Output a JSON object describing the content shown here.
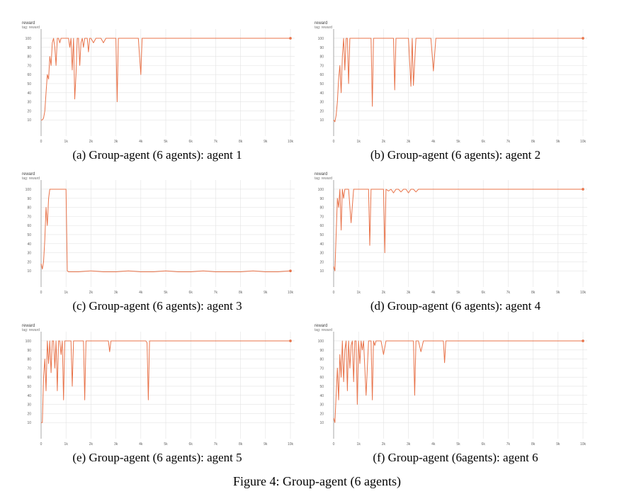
{
  "figure_caption": "Figure 4: Group-agent (6 agents)",
  "colors": {
    "line": "#e8734a",
    "grid": "#e3e3e3",
    "axis": "#999999",
    "text": "#666666"
  },
  "chart_data": [
    {
      "type": "line",
      "caption": "(a) Group-agent (6 agents): agent 1",
      "title": "reward",
      "subtitle": "tag: reward",
      "xlabel": "",
      "ylabel": "",
      "xlim": [
        0,
        10000
      ],
      "ylim": [
        0,
        107
      ],
      "xticks": [
        0,
        1000,
        2000,
        3000,
        4000,
        5000,
        6000,
        7000,
        8000,
        9000,
        10000
      ],
      "xtick_labels": [
        "0",
        "1k",
        "2k",
        "3k",
        "4k",
        "5k",
        "6k",
        "7k",
        "8k",
        "9k",
        "10k"
      ],
      "yticks": [
        10,
        20,
        30,
        40,
        50,
        60,
        70,
        80,
        90,
        100
      ],
      "grid": true,
      "series": [
        {
          "x": [
            0,
            50,
            100,
            150,
            200,
            250,
            300,
            350,
            400,
            450,
            500,
            550,
            600,
            650,
            700,
            750,
            800,
            850,
            900,
            950,
            1000,
            1050,
            1100,
            1150,
            1200,
            1250,
            1300,
            1350,
            1400,
            1450,
            1500,
            1550,
            1600,
            1650,
            1700,
            1750,
            1800,
            1850,
            1900,
            1950,
            2000,
            2100,
            2200,
            2300,
            2400,
            2500,
            2600,
            2700,
            2800,
            2900,
            3000,
            3050,
            3100,
            3200,
            3300,
            3400,
            3500,
            3600,
            3700,
            3800,
            3900,
            3950,
            4000,
            4050,
            4100,
            10000
          ],
          "values": [
            10,
            10,
            12,
            20,
            40,
            60,
            55,
            80,
            70,
            95,
            100,
            90,
            70,
            100,
            100,
            95,
            100,
            100,
            100,
            100,
            100,
            100,
            100,
            90,
            100,
            65,
            100,
            33,
            60,
            100,
            100,
            70,
            95,
            100,
            90,
            100,
            100,
            100,
            85,
            100,
            100,
            95,
            100,
            100,
            100,
            95,
            100,
            100,
            100,
            100,
            100,
            30,
            100,
            100,
            100,
            100,
            100,
            100,
            100,
            100,
            100,
            80,
            60,
            100,
            100,
            100
          ]
        }
      ]
    },
    {
      "type": "line",
      "caption": "(b) Group-agent (6 agents): agent 2",
      "title": "reward",
      "subtitle": "tag: reward",
      "xlabel": "",
      "ylabel": "",
      "xlim": [
        0,
        10000
      ],
      "ylim": [
        0,
        107
      ],
      "xticks": [
        0,
        1000,
        2000,
        3000,
        4000,
        5000,
        6000,
        7000,
        8000,
        9000,
        10000
      ],
      "xtick_labels": [
        "0",
        "1k",
        "2k",
        "3k",
        "4k",
        "5k",
        "6k",
        "7k",
        "8k",
        "9k",
        "10k"
      ],
      "yticks": [
        10,
        20,
        30,
        40,
        50,
        60,
        70,
        80,
        90,
        100
      ],
      "grid": true,
      "series": [
        {
          "x": [
            0,
            50,
            100,
            150,
            200,
            250,
            300,
            350,
            400,
            450,
            500,
            550,
            600,
            650,
            700,
            750,
            800,
            900,
            1000,
            1100,
            1200,
            1300,
            1400,
            1500,
            1550,
            1600,
            1700,
            1800,
            1900,
            2000,
            2100,
            2200,
            2300,
            2400,
            2450,
            2500,
            2600,
            2700,
            2800,
            2900,
            3000,
            3100,
            3150,
            3200,
            3300,
            3400,
            3450,
            3500,
            3600,
            3700,
            3800,
            3900,
            4000,
            4100,
            4200,
            10000
          ],
          "values": [
            10,
            8,
            15,
            30,
            55,
            70,
            40,
            80,
            100,
            65,
            100,
            100,
            50,
            100,
            100,
            100,
            100,
            100,
            100,
            100,
            100,
            100,
            100,
            100,
            25,
            100,
            100,
            100,
            100,
            100,
            100,
            100,
            100,
            100,
            43,
            100,
            100,
            100,
            100,
            100,
            100,
            47,
            100,
            48,
            100,
            100,
            100,
            100,
            100,
            100,
            100,
            100,
            64,
            100,
            100,
            100
          ]
        }
      ]
    },
    {
      "type": "line",
      "caption": "(c) Group-agent (6 agents): agent 3",
      "title": "reward",
      "subtitle": "tag: reward",
      "xlabel": "",
      "ylabel": "",
      "xlim": [
        0,
        10000
      ],
      "ylim": [
        0,
        107
      ],
      "xticks": [
        0,
        1000,
        2000,
        3000,
        4000,
        5000,
        6000,
        7000,
        8000,
        9000,
        10000
      ],
      "xtick_labels": [
        "0",
        "1k",
        "2k",
        "3k",
        "4k",
        "5k",
        "6k",
        "7k",
        "8k",
        "9k",
        "10k"
      ],
      "yticks": [
        10,
        20,
        30,
        40,
        50,
        60,
        70,
        80,
        90,
        100
      ],
      "grid": true,
      "series": [
        {
          "x": [
            0,
            50,
            100,
            150,
            200,
            250,
            300,
            350,
            400,
            500,
            700,
            900,
            1000,
            1050,
            1100,
            1200,
            1500,
            2000,
            2500,
            3000,
            3500,
            4000,
            4500,
            5000,
            5500,
            6000,
            6500,
            7000,
            7500,
            8000,
            8500,
            9000,
            9500,
            10000
          ],
          "values": [
            18,
            12,
            20,
            45,
            80,
            60,
            90,
            100,
            100,
            100,
            100,
            100,
            100,
            10,
            9,
            9,
            9,
            10,
            9,
            9,
            10,
            9,
            9,
            10,
            9,
            9,
            10,
            9,
            9,
            9,
            10,
            9,
            9,
            10
          ]
        }
      ]
    },
    {
      "type": "line",
      "caption": "(d) Group-agent (6 agents): agent 4",
      "title": "reward",
      "subtitle": "tag: reward",
      "xlabel": "",
      "ylabel": "",
      "xlim": [
        0,
        10000
      ],
      "ylim": [
        0,
        107
      ],
      "xticks": [
        0,
        1000,
        2000,
        3000,
        4000,
        5000,
        6000,
        7000,
        8000,
        9000,
        10000
      ],
      "xtick_labels": [
        "0",
        "1k",
        "2k",
        "3k",
        "4k",
        "5k",
        "6k",
        "7k",
        "8k",
        "9k",
        "10k"
      ],
      "yticks": [
        10,
        20,
        30,
        40,
        50,
        60,
        70,
        80,
        90,
        100
      ],
      "grid": true,
      "series": [
        {
          "x": [
            0,
            50,
            100,
            150,
            200,
            250,
            300,
            350,
            400,
            450,
            500,
            600,
            700,
            800,
            900,
            1000,
            1100,
            1200,
            1300,
            1400,
            1450,
            1500,
            1600,
            1700,
            1800,
            1900,
            2000,
            2050,
            2100,
            2200,
            2300,
            2400,
            2500,
            2600,
            2700,
            2800,
            2900,
            3000,
            3100,
            3200,
            3300,
            3400,
            3500,
            3600,
            3700,
            3800,
            3900,
            4000,
            10000
          ],
          "values": [
            15,
            10,
            50,
            90,
            80,
            100,
            55,
            100,
            90,
            100,
            100,
            100,
            63,
            100,
            100,
            100,
            100,
            100,
            100,
            100,
            38,
            100,
            100,
            100,
            100,
            100,
            100,
            30,
            100,
            98,
            100,
            96,
            100,
            100,
            97,
            100,
            100,
            96,
            100,
            100,
            97,
            100,
            100,
            100,
            100,
            100,
            100,
            100,
            100
          ]
        }
      ]
    },
    {
      "type": "line",
      "caption": "(e) Group-agent (6 agents): agent 5",
      "title": "reward",
      "subtitle": "tag: reward",
      "xlabel": "",
      "ylabel": "",
      "xlim": [
        0,
        10000
      ],
      "ylim": [
        0,
        107
      ],
      "xticks": [
        0,
        1000,
        2000,
        3000,
        4000,
        5000,
        6000,
        7000,
        8000,
        9000,
        10000
      ],
      "xtick_labels": [
        "0",
        "1k",
        "2k",
        "3k",
        "4k",
        "5k",
        "6k",
        "7k",
        "8k",
        "9k",
        "10k"
      ],
      "yticks": [
        10,
        20,
        30,
        40,
        50,
        60,
        70,
        80,
        90,
        100
      ],
      "grid": true,
      "series": [
        {
          "x": [
            0,
            50,
            100,
            150,
            200,
            250,
            300,
            350,
            400,
            450,
            500,
            550,
            600,
            650,
            700,
            750,
            800,
            850,
            900,
            950,
            1000,
            1100,
            1200,
            1250,
            1300,
            1400,
            1500,
            1600,
            1700,
            1750,
            1800,
            1900,
            2000,
            2100,
            2200,
            2300,
            2400,
            2500,
            2600,
            2700,
            2750,
            2800,
            2900,
            3000,
            3500,
            4000,
            4200,
            4250,
            4300,
            4350,
            4400,
            10000
          ],
          "values": [
            10,
            10,
            60,
            80,
            45,
            100,
            75,
            100,
            65,
            100,
            100,
            70,
            100,
            45,
            100,
            100,
            85,
            100,
            35,
            100,
            100,
            100,
            100,
            50,
            100,
            100,
            100,
            100,
            100,
            35,
            100,
            100,
            100,
            100,
            100,
            100,
            100,
            100,
            100,
            100,
            88,
            100,
            100,
            100,
            100,
            100,
            100,
            98,
            35,
            100,
            100,
            100
          ]
        }
      ]
    },
    {
      "type": "line",
      "caption": "(f) Group-agent (6agents): agent 6",
      "title": "reward",
      "subtitle": "tag: reward",
      "xlabel": "",
      "ylabel": "",
      "xlim": [
        0,
        10000
      ],
      "ylim": [
        0,
        107
      ],
      "xticks": [
        0,
        1000,
        2000,
        3000,
        4000,
        5000,
        6000,
        7000,
        8000,
        9000,
        10000
      ],
      "xtick_labels": [
        "0",
        "1k",
        "2k",
        "3k",
        "4k",
        "5k",
        "6k",
        "7k",
        "8k",
        "9k",
        "10k"
      ],
      "yticks": [
        10,
        20,
        30,
        40,
        50,
        60,
        70,
        80,
        90,
        100
      ],
      "grid": true,
      "series": [
        {
          "x": [
            0,
            50,
            100,
            150,
            200,
            250,
            300,
            350,
            400,
            450,
            500,
            550,
            600,
            650,
            700,
            750,
            800,
            850,
            900,
            950,
            1000,
            1050,
            1100,
            1150,
            1200,
            1300,
            1400,
            1500,
            1550,
            1600,
            1650,
            1700,
            1800,
            1900,
            2000,
            2100,
            2200,
            2300,
            2400,
            2500,
            2600,
            2700,
            2800,
            2900,
            3000,
            3100,
            3200,
            3250,
            3300,
            3400,
            3500,
            3600,
            3700,
            3800,
            3900,
            4000,
            4100,
            4200,
            4300,
            4400,
            4450,
            4500,
            4600,
            4700,
            4800,
            10000
          ],
          "values": [
            15,
            10,
            40,
            70,
            35,
            85,
            60,
            100,
            55,
            90,
            100,
            45,
            100,
            70,
            95,
            100,
            55,
            100,
            100,
            30,
            100,
            75,
            100,
            90,
            100,
            40,
            100,
            100,
            35,
            100,
            95,
            100,
            100,
            100,
            85,
            100,
            100,
            100,
            100,
            100,
            100,
            100,
            100,
            100,
            100,
            100,
            100,
            40,
            100,
            100,
            88,
            100,
            100,
            100,
            100,
            100,
            100,
            100,
            100,
            100,
            76,
            100,
            100,
            100,
            100,
            100
          ]
        }
      ]
    }
  ]
}
